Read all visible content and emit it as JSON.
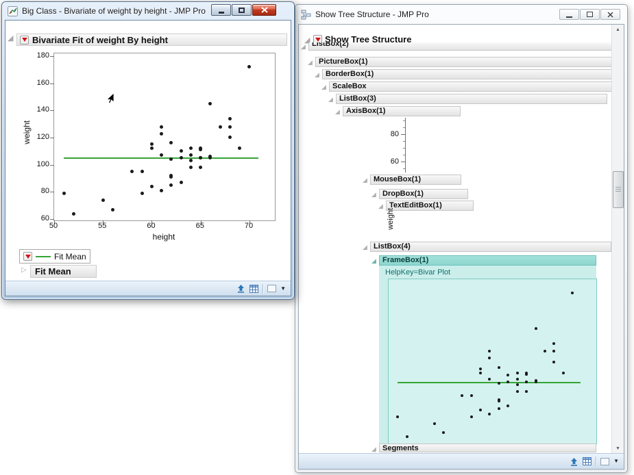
{
  "icons": {
    "disclosure_open": "◢",
    "disclosure_closed": "▷",
    "dropdown": "▼",
    "scroll_up": "▲",
    "scroll_down": "▼"
  },
  "colors": {
    "fit_line": "#35a435",
    "dot": "#1b1b1b",
    "teal_region": "#cbeeeb",
    "teal_bar": "#a4e1dc",
    "teal_plot_border": "#7ecac4",
    "teal_text": "#0e6e68"
  },
  "left_window": {
    "title": "Big Class - Bivariate of weight by height - JMP Pro",
    "outline_title": "Bivariate Fit of weight By height",
    "legend_label": "Fit Mean",
    "fit_mean_label": "Fit Mean"
  },
  "right_window": {
    "title": "Show Tree Structure - JMP Pro",
    "outline_title": "Show Tree Structure",
    "tree": [
      {
        "label": "ListBox(2)"
      },
      {
        "label": "PictureBox(1)"
      },
      {
        "label": "BorderBox(1)"
      },
      {
        "label": "ScaleBox"
      },
      {
        "label": "ListBox(3)"
      },
      {
        "label": "AxisBox(1)"
      },
      {
        "label": "MouseBox(1)"
      },
      {
        "label": "DropBox(1)"
      },
      {
        "label": "TextEditBox(1)"
      },
      {
        "label": "ListBox(4)"
      },
      {
        "label": "FrameBox(1)"
      },
      {
        "label": "Segments"
      }
    ],
    "axis_fragment_ticks": [
      "80",
      "60"
    ],
    "text_edit_value": "weight",
    "frame_helpkey": "HelpKey=Bivar Plot"
  },
  "chart_data": {
    "type": "scatter",
    "title": "Bivariate Fit of weight By height",
    "xlabel": "height",
    "ylabel": "weight",
    "xlim": [
      50,
      72.6
    ],
    "ylim": [
      59,
      182
    ],
    "x_ticks": [
      50,
      55,
      60,
      65,
      70
    ],
    "y_ticks": [
      60,
      80,
      100,
      120,
      140,
      160,
      180
    ],
    "fit_mean": 104.85,
    "fit_line_x_extent": [
      51,
      70.9
    ],
    "legend": [
      "Fit Mean"
    ],
    "series": [
      {
        "name": "weight by height",
        "points": [
          [
            59,
            95
          ],
          [
            61,
            123
          ],
          [
            55,
            74
          ],
          [
            66,
            145
          ],
          [
            52,
            64
          ],
          [
            60,
            84
          ],
          [
            61,
            128
          ],
          [
            51,
            79
          ],
          [
            60,
            112
          ],
          [
            61,
            107
          ],
          [
            56,
            67
          ],
          [
            65,
            98
          ],
          [
            63,
            105
          ],
          [
            58,
            95
          ],
          [
            59,
            79
          ],
          [
            61,
            81
          ],
          [
            62,
            91
          ],
          [
            65,
            105
          ],
          [
            63,
            110
          ],
          [
            62,
            92
          ],
          [
            63,
            87
          ],
          [
            64,
            98
          ],
          [
            65,
            105
          ],
          [
            64,
            103
          ],
          [
            68,
            120
          ],
          [
            64,
            107
          ],
          [
            69,
            112
          ],
          [
            62,
            85
          ],
          [
            64,
            112
          ],
          [
            67,
            128
          ],
          [
            65,
            111
          ],
          [
            66,
            105
          ],
          [
            62,
            104
          ],
          [
            66,
            106
          ],
          [
            65,
            112
          ],
          [
            60,
            115
          ],
          [
            68,
            128
          ],
          [
            62,
            116
          ],
          [
            68,
            134
          ],
          [
            70,
            172
          ]
        ]
      }
    ]
  }
}
